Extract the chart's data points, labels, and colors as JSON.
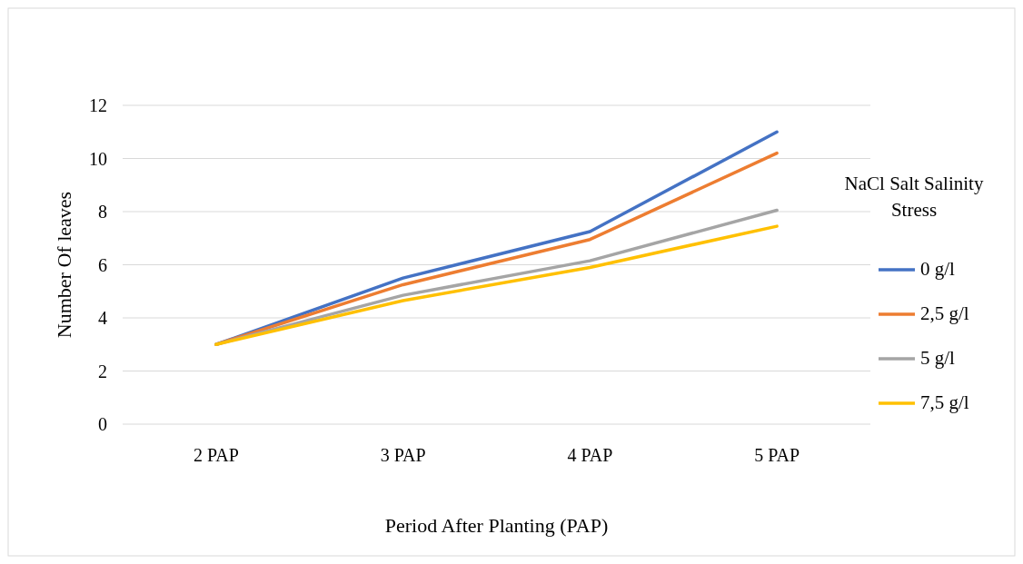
{
  "chart_data": {
    "type": "line",
    "xlabel": "Period After Planting (PAP)",
    "ylabel": "Number Of leaves",
    "legend_title": "NaCl Salt Salinity Stress",
    "categories": [
      "2 PAP",
      "3 PAP",
      "4 PAP",
      "5 PAP"
    ],
    "series": [
      {
        "name": "0 g/l",
        "color": "#4472c4",
        "values": [
          3,
          5.5,
          7.25,
          11
        ]
      },
      {
        "name": "2,5 g/l",
        "color": "#ed7d31",
        "values": [
          3,
          5.25,
          6.95,
          10.2
        ]
      },
      {
        "name": "5 g/l",
        "color": "#a5a5a5",
        "values": [
          3,
          4.85,
          6.15,
          8.05
        ]
      },
      {
        "name": "7,5 g/l",
        "color": "#ffc000",
        "values": [
          3,
          4.65,
          5.9,
          7.45
        ]
      }
    ],
    "ylim": [
      0,
      12
    ],
    "yticks": [
      0,
      2,
      4,
      6,
      8,
      10,
      12
    ],
    "grid": "y",
    "legend": "right",
    "marker": "none",
    "line_style": "solid"
  }
}
